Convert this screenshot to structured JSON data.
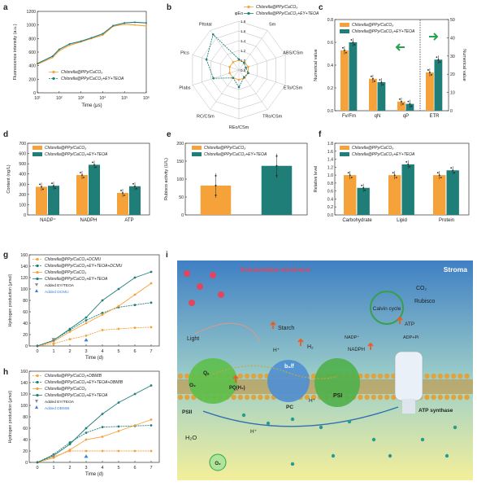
{
  "colors": {
    "orange": "#f5a23a",
    "teal": "#1f7f78",
    "gray": "#8a8a8a",
    "blue": "#3b7fd6",
    "stroma_top": "#3f7fc4",
    "stroma_bottom": "#f3ef9a",
    "extracellular": "#e0475e"
  },
  "legend": {
    "ppy": "Chlorella@PPy/CaCO₃",
    "ppy_ey": "Chlorella@PPy/CaCO₃+EY+TEOA",
    "ppy_dcmu": "Chlorella@PPy/CaCO₃+DCMU",
    "ppy_ey_dcmu": "Chlorella@PPy/CaCO₃+EY+TEOA+DCMU",
    "ppy_dbmib": "Chlorella@PPy/CaCO₃+DBMIB",
    "ppy_ey_dbmib": "Chlorella@PPy/CaCO₃+EY+TEOA+DBMIB",
    "added_ey": "Added EY/TEOA",
    "added_dcmu": "Added DCMU",
    "added_dbmib": "Added DBMIB"
  },
  "panels": {
    "a": {
      "label": "a",
      "chart_data": {
        "type": "line",
        "xlabel": "Time (μs)",
        "ylabel": "Fluorescence intensity (a.u.)",
        "x_scale": "log",
        "xlim": [
          10,
          1000000
        ],
        "x_ticks": [
          "10¹",
          "10²",
          "10³",
          "10⁴",
          "10⁵",
          "10⁶"
        ],
        "ylim": [
          0,
          1200
        ],
        "y_ticks": [
          "0",
          "200",
          "400",
          "600",
          "800",
          "1000",
          "1200"
        ],
        "series": [
          {
            "name": "Chlorella@PPy/CaCO₃",
            "x": [
              10,
              50,
              100,
              300,
              1000,
              3000,
              10000,
              30000,
              100000,
              300000,
              1000000
            ],
            "values": [
              420,
              520,
              620,
              700,
              750,
              800,
              850,
              980,
              1010,
              1000,
              985
            ]
          },
          {
            "name": "Chlorella@PPy/CaCO₃+EY+TEOA",
            "x": [
              10,
              50,
              100,
              300,
              1000,
              3000,
              10000,
              30000,
              100000,
              300000,
              1000000
            ],
            "values": [
              430,
              540,
              640,
              720,
              760,
              810,
              870,
              990,
              1030,
              1040,
              1030
            ]
          }
        ]
      }
    },
    "b": {
      "label": "b",
      "chart_data": {
        "type": "radar",
        "axes": [
          "φEo",
          "Sm",
          "ABS/CSm",
          "ETo/CSm",
          "TRo/CSm",
          "REo/CSm",
          "RC/CSm",
          "PIabs",
          "PIcs",
          "PItotal"
        ],
        "rings": [
          "0.8",
          "1.0",
          "1.2",
          "1.4",
          "1.6",
          "1.8"
        ],
        "rlim": [
          0.8,
          1.8
        ],
        "series": [
          {
            "name": "Chlorella@PPy/CaCO₃",
            "values": [
              1.0,
              1.0,
              1.0,
              1.0,
              1.0,
              1.0,
              1.0,
              1.0,
              1.0,
              1.0
            ]
          },
          {
            "name": "Chlorella@PPy/CaCO₃+EY+TEOA",
            "values": [
              1.02,
              0.98,
              0.95,
              1.0,
              0.98,
              1.15,
              1.0,
              1.35,
              1.5,
              1.7
            ]
          }
        ]
      }
    },
    "c": {
      "label": "c",
      "chart_data": {
        "type": "bar",
        "categories": [
          "Fv/Fm",
          "qN",
          "qP",
          "ETR"
        ],
        "ylabel": "Numerical value",
        "ylim": [
          0,
          0.8
        ],
        "y_ticks": [
          "0.0",
          "0.2",
          "0.4",
          "0.6",
          "0.8"
        ],
        "y2label": "Numerical value",
        "y2lim": [
          0,
          50
        ],
        "y2_ticks": [
          "0",
          "10",
          "20",
          "30",
          "40",
          "50"
        ],
        "series": [
          {
            "name": "Chlorella@PPy/CaCO₃",
            "values": [
              0.53,
              0.28,
              0.08,
              21
            ]
          },
          {
            "name": "Chlorella@PPy/CaCO₃+EY+TEOA",
            "values": [
              0.6,
              0.25,
              0.06,
              28
            ]
          }
        ]
      }
    },
    "d": {
      "label": "d",
      "chart_data": {
        "type": "bar",
        "categories": [
          "NADP⁺",
          "NADPH",
          "ATP"
        ],
        "ylabel": "Content (ng/L)",
        "ylim": [
          0,
          700
        ],
        "y_ticks": [
          "0",
          "100",
          "200",
          "300",
          "400",
          "500",
          "600",
          "700"
        ],
        "series": [
          {
            "name": "Chlorella@PPy/CaCO₃",
            "values": [
              275,
              390,
              215
            ]
          },
          {
            "name": "Chlorella@PPy/CaCO₃+EY+TEOA",
            "values": [
              285,
              490,
              280
            ]
          }
        ]
      }
    },
    "e": {
      "label": "e",
      "chart_data": {
        "type": "bar",
        "categories": [
          "Chlorella@PPy/CaCO₃",
          "Chlorella@PPy/CaCO₃+EY+TEOA"
        ],
        "ylabel": "Rubisco activity (U/L)",
        "ylim": [
          0,
          200
        ],
        "y_ticks": [
          "0",
          "50",
          "100",
          "150",
          "200"
        ],
        "values": [
          82,
          137
        ]
      }
    },
    "f": {
      "label": "f",
      "chart_data": {
        "type": "bar",
        "categories": [
          "Carbohydrate",
          "Lipid",
          "Protein"
        ],
        "ylabel": "Relative level",
        "ylim": [
          0,
          1.8
        ],
        "y_ticks": [
          "0.0",
          "0.2",
          "0.4",
          "0.6",
          "0.8",
          "1.0",
          "1.2",
          "1.4",
          "1.6",
          "1.8"
        ],
        "series": [
          {
            "name": "Chlorella@PPy/CaCO₃",
            "values": [
              1.0,
              1.0,
              1.0
            ]
          },
          {
            "name": "Chlorella@PPy/CaCO₃+EY+TEOA",
            "values": [
              0.68,
              1.27,
              1.12
            ]
          }
        ]
      }
    },
    "g": {
      "label": "g",
      "chart_data": {
        "type": "line",
        "xlabel": "Time (d)",
        "ylabel": "Hydrogen production (μmol)",
        "x": [
          0,
          1,
          2,
          3,
          4,
          5,
          6,
          7
        ],
        "xlim": [
          -0.5,
          7.5
        ],
        "ylim": [
          0,
          160
        ],
        "y_ticks": [
          "0",
          "20",
          "40",
          "60",
          "80",
          "100",
          "120",
          "140",
          "160"
        ],
        "series": [
          {
            "name": "Chlorella@PPy/CaCO₃+DCMU",
            "values": [
              0,
              4,
              12,
              18,
              28,
              30,
              32,
              33
            ]
          },
          {
            "name": "Chlorella@PPy/CaCO₃+EY+TEOA+DCMU",
            "values": [
              0,
              10,
              28,
              45,
              58,
              68,
              72,
              76
            ]
          },
          {
            "name": "Chlorella@PPy/CaCO₃",
            "values": [
              0,
              8,
              25,
              40,
              55,
              70,
              90,
              110
            ]
          },
          {
            "name": "Chlorella@PPy/CaCO₃+EY+TEOA",
            "values": [
              0,
              10,
              30,
              50,
              80,
              100,
              120,
              130
            ]
          }
        ]
      }
    },
    "h": {
      "label": "h",
      "chart_data": {
        "type": "line",
        "xlabel": "Time (d)",
        "ylabel": "Hydrogen production (μmol)",
        "x": [
          0,
          1,
          2,
          3,
          4,
          5,
          6,
          7
        ],
        "xlim": [
          -0.5,
          7.5
        ],
        "ylim": [
          0,
          160
        ],
        "y_ticks": [
          "0",
          "20",
          "40",
          "60",
          "80",
          "100",
          "120",
          "140",
          "160"
        ],
        "series": [
          {
            "name": "Chlorella@PPy/CaCO₃+DBMIB",
            "values": [
              0,
              10,
              20,
              20,
              20,
              20,
              20,
              20
            ]
          },
          {
            "name": "Chlorella@PPy/CaCO₃+EY+TEOA+DBMIB",
            "values": [
              0,
              14,
              35,
              52,
              62,
              63,
              64,
              65
            ]
          },
          {
            "name": "Chlorella@PPy/CaCO₃",
            "values": [
              0,
              8,
              22,
              40,
              45,
              55,
              65,
              75
            ]
          },
          {
            "name": "Chlorella@PPy/CaCO₃+EY+TEOA",
            "values": [
              0,
              12,
              32,
              60,
              85,
              105,
              120,
              135
            ]
          }
        ]
      }
    },
    "i": {
      "label": "i",
      "texts": {
        "extracellular": "Extracellular electrons",
        "stroma": "Stroma",
        "light": "Light",
        "starch": "Starch",
        "h2": "H₂",
        "hplus": "H⁺",
        "calvin": "Calvin cycle",
        "co2": "CO₂",
        "rubisco": "Rubisco",
        "atp": "ATP",
        "adp": "ADP+Pi",
        "nadp": "NADP⁺",
        "nadph": "NADPH",
        "qa": "Qₐ",
        "pq": "PQ(H₂)",
        "b6f": "b₆/f",
        "pc": "PC",
        "psi": "PSI",
        "psii": "PSII",
        "atpsyn": "ATP synthase",
        "h2o": "H₂O",
        "o2": "O₂",
        "e": "e"
      }
    }
  }
}
